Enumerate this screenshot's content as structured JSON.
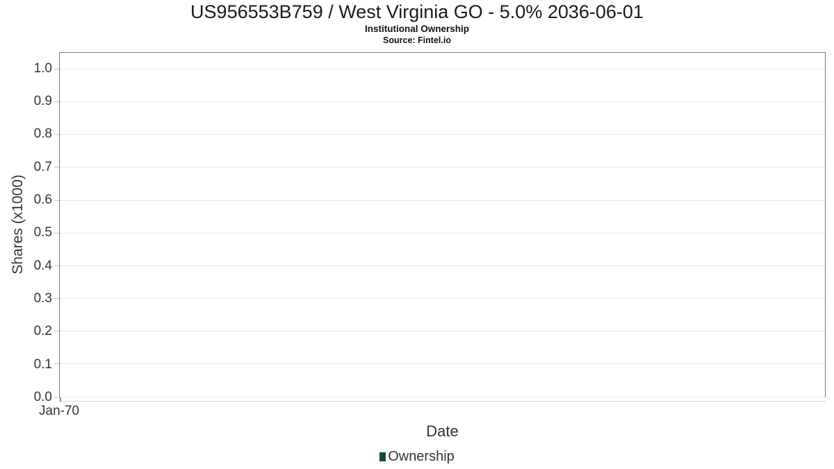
{
  "header": {
    "title": "US956553B759 / West Virginia GO - 5.0% 2036-06-01",
    "subtitle": "Institutional Ownership",
    "source": "Source: Fintel.io"
  },
  "colors": {
    "ownership_series": "#174a2e",
    "plot_border": "#7a7a7a",
    "gridline": "#e7e7e7",
    "axis_text": "#333333",
    "title_text": "#1a1a1a"
  },
  "chart_data": {
    "type": "line",
    "title": "US956553B759 / West Virginia GO - 5.0% 2036-06-01",
    "subtitle": "Institutional Ownership",
    "source": "Source: Fintel.io",
    "xlabel": "Date",
    "ylabel": "Shares (x1000)",
    "x": [],
    "series": [
      {
        "name": "Ownership",
        "color": "#174a2e",
        "values": []
      }
    ],
    "ylim": [
      0,
      1.05
    ],
    "yticks": [
      0.0,
      0.1,
      0.2,
      0.3,
      0.4,
      0.5,
      0.6,
      0.7,
      0.8,
      0.9,
      1.0
    ],
    "ytick_labels": [
      "0.0",
      "0.1",
      "0.2",
      "0.3",
      "0.4",
      "0.5",
      "0.6",
      "0.7",
      "0.8",
      "0.9",
      "1.0"
    ],
    "xtick_labels": [
      "Jan-70"
    ],
    "grid": "horizontal-only",
    "legend_position": "bottom-center"
  },
  "legend": {
    "items": [
      {
        "label": "Ownership",
        "color": "#174a2e"
      }
    ]
  }
}
